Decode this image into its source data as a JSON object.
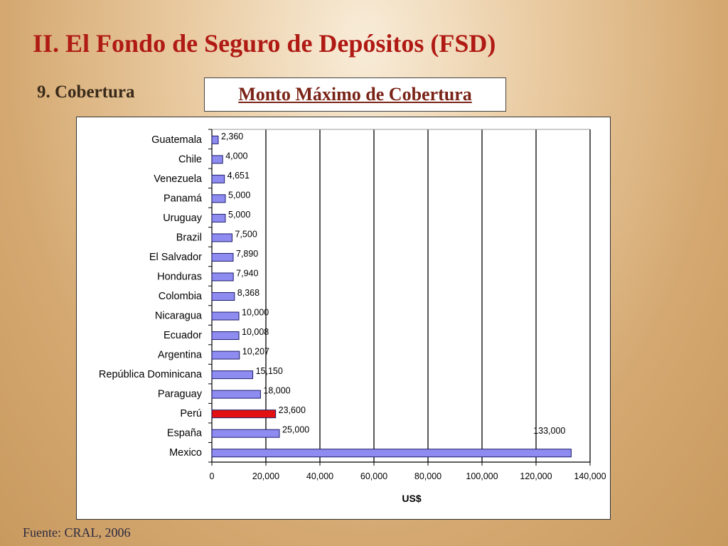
{
  "slide": {
    "title": "II. El Fondo de Seguro de Depósitos (FSD)",
    "subtitle": "9. Cobertura",
    "source": "Fuente: CRAL, 2006"
  },
  "chart_data": {
    "type": "bar",
    "orientation": "horizontal",
    "title": "Monto Máximo de Cobertura",
    "xlabel": "US$",
    "ylabel": "",
    "xlim": [
      0,
      140000
    ],
    "xticks": [
      0,
      20000,
      40000,
      60000,
      80000,
      100000,
      120000,
      140000
    ],
    "xtick_labels": [
      "0",
      "20,000",
      "40,000",
      "60,000",
      "80,000",
      "100,000",
      "120,000",
      "140,000"
    ],
    "grid": "vertical",
    "categories": [
      "Guatemala",
      "Chile",
      "Venezuela",
      "Panamá",
      "Uruguay",
      "Brazil",
      "El Salvador",
      "Honduras",
      "Colombia",
      "Nicaragua",
      "Ecuador",
      "Argentina",
      "República Dominicana",
      "Paraguay",
      "Perú",
      "España",
      "Mexico"
    ],
    "values": [
      2360,
      4000,
      4651,
      5000,
      5000,
      7500,
      7890,
      7940,
      8368,
      10000,
      10008,
      10207,
      15150,
      18000,
      23600,
      25000,
      133000
    ],
    "value_labels": [
      "2,360",
      "4,000",
      "4,651",
      "5,000",
      "5,000",
      "7,500",
      "7,890",
      "7,940",
      "8,368",
      "10,000",
      "10,008",
      "10,207",
      "15,150",
      "18,000",
      "23,600",
      "25,000",
      "133,000"
    ],
    "highlight": "Perú",
    "colors": {
      "bar": "#8e8cf0",
      "highlight": "#e21010",
      "grid": "#000000"
    }
  }
}
